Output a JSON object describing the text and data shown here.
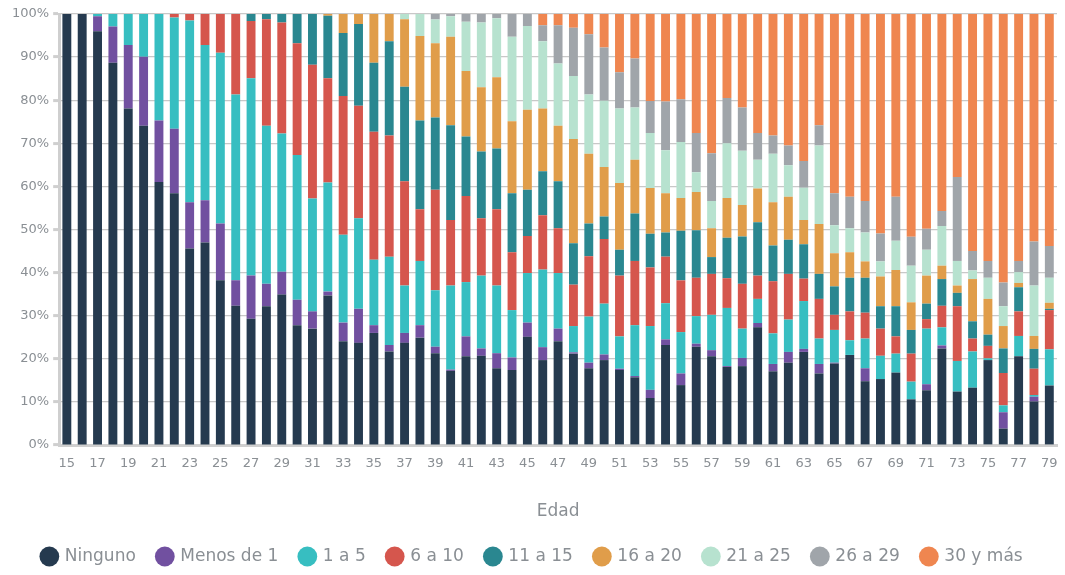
{
  "chart_data": {
    "type": "bar",
    "stacked": true,
    "xlabel": "Edad",
    "legend": "bottom",
    "grid": "y",
    "categories": [
      "15",
      null,
      "17",
      null,
      "19",
      null,
      "21",
      null,
      "23",
      null,
      "25",
      null,
      "27",
      null,
      "29",
      null,
      "31",
      null,
      "33",
      null,
      "35",
      null,
      "37",
      null,
      "39",
      null,
      "41",
      null,
      "43",
      null,
      "45",
      null,
      "47",
      null,
      "49",
      null,
      "51",
      null,
      "53",
      null,
      "55",
      null,
      "57",
      null,
      "59",
      null,
      "61",
      null,
      "63",
      null,
      "65",
      null,
      "67",
      null,
      "69",
      null,
      "71",
      null,
      "73",
      null,
      "75",
      null,
      "77",
      null,
      "79"
    ],
    "ylim": [
      0,
      100
    ],
    "yticks": [
      {
        "value": 0,
        "label": "0%"
      },
      {
        "value": 10,
        "label": "10%"
      },
      {
        "value": 20,
        "label": "20%"
      },
      {
        "value": 30,
        "label": "30%"
      },
      {
        "value": 40,
        "label": "40%"
      },
      {
        "value": 50,
        "label": "50%"
      },
      {
        "value": 60,
        "label": "60%"
      },
      {
        "value": 70,
        "label": "70%"
      },
      {
        "value": 80,
        "label": "80%"
      },
      {
        "value": 90,
        "label": "90%"
      },
      {
        "value": 100,
        "label": "100%"
      }
    ],
    "series": [
      {
        "name": "Ninguno",
        "color": "#253a4f",
        "values": [
          100,
          100,
          96,
          88.7,
          78.1,
          74.1,
          61,
          58.4,
          45.6,
          47,
          38.2,
          32.3,
          29.3,
          32.2,
          34.9,
          27.8,
          27,
          34.7,
          24.1,
          23.7,
          26,
          21.7,
          23.7,
          24.9,
          21.3,
          17.2,
          20.6,
          20.7,
          17.8,
          17.4,
          25.1,
          19.7,
          24.1,
          21.2,
          17.8,
          19.7,
          17.4,
          15.7,
          10.9,
          23.2,
          13.9,
          22.8,
          20.6,
          18.1,
          18.3,
          27.3,
          17.1,
          19.1,
          21.6,
          16.6,
          18.9,
          20.9,
          14.8,
          15.3,
          16.8,
          10.6,
          12.7,
          22.4,
          12.4,
          13.3,
          19.7,
          3.8,
          20.6,
          10.1,
          13.8
        ]
      },
      {
        "name": "Menos de 1",
        "color": "#7150a0",
        "values": [
          0,
          0,
          3.5,
          8.4,
          14.7,
          16,
          14.3,
          15,
          10.7,
          9.8,
          13.2,
          5.9,
          10,
          5.2,
          5.3,
          5.9,
          4,
          0.9,
          4.3,
          7.9,
          1.8,
          1.5,
          2.3,
          2.9,
          1.5,
          0.3,
          4.6,
          1.7,
          3.5,
          2.9,
          3.3,
          3,
          2.9,
          0.3,
          1.3,
          1.3,
          0.3,
          0.3,
          1.9,
          1.3,
          2.7,
          0.7,
          1.4,
          0.2,
          1.9,
          1,
          1.7,
          2.5,
          0.7,
          2.2,
          0.2,
          0,
          3,
          0,
          0,
          0,
          1.4,
          0.7,
          0,
          0,
          0,
          3.8,
          0,
          1.1,
          0
        ]
      },
      {
        "name": "1 a 5",
        "color": "#37bec1",
        "values": [
          0,
          0,
          0.5,
          2.9,
          7.2,
          9.9,
          24.7,
          25.8,
          42.2,
          36,
          39.6,
          43.1,
          45.8,
          36.7,
          32.1,
          33.6,
          26.2,
          25.3,
          20.4,
          21,
          15.2,
          20.5,
          11,
          14.9,
          13.1,
          19.5,
          12.6,
          16.9,
          15.7,
          11,
          11.5,
          18,
          12.9,
          6.1,
          10.7,
          11.8,
          7.5,
          11.8,
          14.8,
          8.4,
          9.6,
          6.4,
          8.2,
          13.5,
          6.8,
          5.6,
          7.1,
          7.5,
          11.1,
          5.9,
          7.6,
          3.4,
          6.9,
          5.4,
          4.4,
          4.1,
          12.9,
          4.2,
          7.1,
          8.4,
          0.4,
          1.6,
          4.7,
          0.4,
          8.4
        ]
      },
      {
        "name": "6 a 10",
        "color": "#d5564d",
        "values": [
          0,
          0,
          0,
          0,
          0,
          0,
          0,
          0.8,
          1.5,
          7.2,
          9,
          18.7,
          13.3,
          24.7,
          25.7,
          25.9,
          31,
          24.2,
          32.2,
          26.1,
          29.7,
          28.1,
          24.2,
          12,
          23.3,
          15.2,
          20,
          13.3,
          17.7,
          13.4,
          8.6,
          12.6,
          10.4,
          9.6,
          14,
          15,
          14.1,
          14.9,
          13.6,
          10.8,
          12,
          8.9,
          9.5,
          6.9,
          10.4,
          5.4,
          12.1,
          10.6,
          5.2,
          9.2,
          3.5,
          6.7,
          6,
          6.3,
          4,
          6.5,
          2.2,
          5,
          12.7,
          3,
          2.9,
          7.5,
          5.7,
          6.1,
          9.1
        ]
      },
      {
        "name": "11 a 15",
        "color": "#2a8790",
        "values": [
          0,
          0,
          0,
          0,
          0,
          0,
          0,
          0,
          0,
          0,
          0,
          0,
          1.6,
          1.2,
          2,
          6.8,
          11.8,
          14.5,
          14.6,
          19,
          16,
          21.9,
          21.9,
          20.6,
          16.8,
          22,
          13.8,
          15.5,
          14.1,
          13.7,
          10.7,
          10.2,
          10.9,
          9.6,
          7.6,
          5.2,
          6,
          11,
          7.8,
          5.6,
          11.5,
          11,
          3.9,
          9.4,
          11,
          12.4,
          8.3,
          7.9,
          8,
          5.8,
          6.6,
          7.8,
          8.1,
          5.2,
          7,
          5.5,
          3.6,
          6.2,
          3.1,
          4,
          2.6,
          5.7,
          5.6,
          4.6,
          0.3
        ]
      },
      {
        "name": "16 a 20",
        "color": "#e09d4a",
        "values": [
          0,
          0,
          0,
          0,
          0,
          0,
          0,
          0,
          0,
          0,
          0,
          0,
          0,
          0,
          0,
          0,
          0,
          0.4,
          4.4,
          2.3,
          11.3,
          6.3,
          15.7,
          19.6,
          17.2,
          20.5,
          15.2,
          14.9,
          16.5,
          16.7,
          18.6,
          14.6,
          12.9,
          24.2,
          16.2,
          11.5,
          15.5,
          12.5,
          10.6,
          9.1,
          7.6,
          8.9,
          6.7,
          9.2,
          7.3,
          7.8,
          10,
          10,
          5.6,
          11.6,
          7.7,
          5.9,
          3.8,
          6.9,
          8.4,
          6.4,
          6.5,
          3.1,
          1.7,
          9.8,
          8.3,
          5.2,
          1,
          3,
          1.4
        ]
      },
      {
        "name": "21 a 25",
        "color": "#b7e2cf",
        "values": [
          0,
          0,
          0,
          0,
          0,
          0,
          0,
          0,
          0,
          0,
          0,
          0,
          0,
          0,
          0,
          0,
          0,
          0,
          0,
          0,
          0,
          0,
          1.2,
          5.1,
          5.5,
          4.8,
          11.4,
          15,
          13.7,
          19.6,
          19.4,
          15.6,
          14.4,
          14.6,
          13.7,
          15.4,
          17.3,
          12.1,
          12.8,
          10,
          13,
          4.6,
          6.3,
          12.7,
          12.6,
          6.7,
          11.3,
          7.3,
          7.5,
          18.2,
          6.5,
          5.6,
          6.7,
          3.5,
          6.8,
          8.5,
          6,
          9.2,
          5.7,
          2,
          4.9,
          4.6,
          2.5,
          11.7,
          5.8
        ]
      },
      {
        "name": "26 a 29",
        "color": "#a0a5aa",
        "values": [
          0,
          0,
          0,
          0,
          0,
          0,
          0,
          0,
          0,
          0,
          0,
          0,
          0,
          0,
          0,
          0,
          0,
          0,
          0,
          0,
          0,
          0,
          0,
          0,
          1.3,
          0.5,
          1.8,
          2,
          1,
          5.3,
          2.8,
          3.7,
          8.9,
          11.2,
          14,
          12.3,
          8.4,
          11.4,
          7.4,
          11.3,
          9.9,
          9.1,
          11.1,
          10.5,
          10,
          6.2,
          4.2,
          4.6,
          6.2,
          4.7,
          7.4,
          7.3,
          7.3,
          6.5,
          10.2,
          6.7,
          4.9,
          3.5,
          19.5,
          4.5,
          3.9,
          5.5,
          2.6,
          10.2,
          7.4
        ]
      },
      {
        "name": "30 y más",
        "color": "#ef8650",
        "values": [
          0,
          0,
          0,
          0,
          0,
          0,
          0,
          0,
          0,
          0,
          0,
          0,
          0,
          0,
          0,
          0,
          0,
          0,
          0,
          0,
          0,
          0,
          0,
          0,
          0,
          0,
          0,
          0,
          0,
          0,
          0,
          2.6,
          2.6,
          3.2,
          4.7,
          7.8,
          13.5,
          10.3,
          20.2,
          20.3,
          19.8,
          27.6,
          32.3,
          19.5,
          21.7,
          27.6,
          28.2,
          30.5,
          34.1,
          25.8,
          41.6,
          42.4,
          43.4,
          50.9,
          42.4,
          51.7,
          49.8,
          45.7,
          37.8,
          55,
          57.3,
          62.3,
          57.3,
          52.8,
          53.8
        ]
      }
    ]
  }
}
